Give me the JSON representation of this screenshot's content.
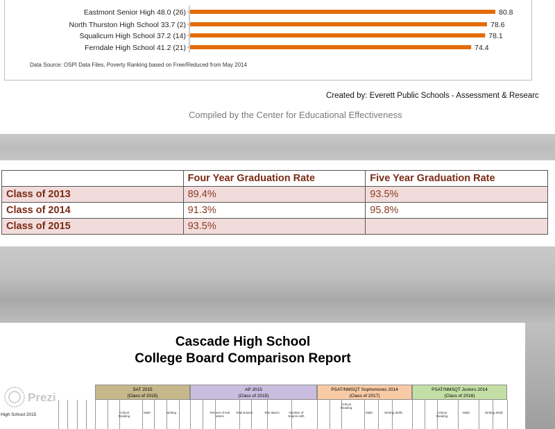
{
  "chart_data": {
    "type": "bar",
    "orientation": "horizontal",
    "categories": [
      "Eastmont Senior High 48.0 (26)",
      "North Thurston High School 33.7  (2)",
      "Squalicum High School 37.2 (14)",
      "Ferndale High School 41.2 (21)"
    ],
    "values": [
      80.8,
      78.6,
      78.1,
      74.4
    ],
    "value_labels": [
      "80.8",
      "78.6",
      "78.1",
      "74.4"
    ],
    "xlim": [
      0,
      100
    ],
    "bar_color": "#e36c09",
    "grid": false,
    "note": "Data Source: OSPI Data Files, Poverty Ranking based on Free/Reduced from May 2014"
  },
  "credits": {
    "created_by": "Created by: Everett Public Schools - Assessment & Researc",
    "compiled_by": "Compiled by the Center for Educational Effectiveness"
  },
  "graduation_table": {
    "headers": [
      "",
      "Four Year Graduation Rate",
      "Five Year Graduation Rate"
    ],
    "rows": [
      {
        "label": "Class of 2013",
        "four_year": "89.4%",
        "five_year": "93.5%"
      },
      {
        "label": "Class of 2014",
        "four_year": "91.3%",
        "five_year": "95.8%"
      },
      {
        "label": "Class of 2015",
        "four_year": "93.5%",
        "five_year": ""
      }
    ],
    "colors": {
      "header_text": "#7a2b16",
      "shaded_row": "#f2dcdb"
    }
  },
  "report": {
    "title_line1": "Cascade High School",
    "title_line2": "College Board Comparison Report",
    "sections": [
      {
        "name": "SAT 2015",
        "sub": "(Class of 2015)",
        "color": "#c6b88b"
      },
      {
        "name": "AP 2015",
        "sub": "(Class of 2015)",
        "color": "#cbbde0"
      },
      {
        "name": "PSAT/NMSQT Sophomores 2014",
        "sub": "(Class of 2017)",
        "color": "#f8cba5"
      },
      {
        "name": "PSAT/NMSQT Juniors 2014",
        "sub": "(Class of 2016)",
        "color": "#c4dfa5"
      }
    ],
    "row_school": "High School 2015",
    "column_fragments": [
      "Critical Reading",
      "Math",
      "Writing",
      "Percent of test takers",
      "Total Exams",
      "Test takers",
      "Number of Exams with",
      "Critical Reading",
      "Math",
      "Writing Skills",
      "Critical Reading",
      "Math",
      "Writing Skills"
    ],
    "watermark": "Prezi"
  }
}
